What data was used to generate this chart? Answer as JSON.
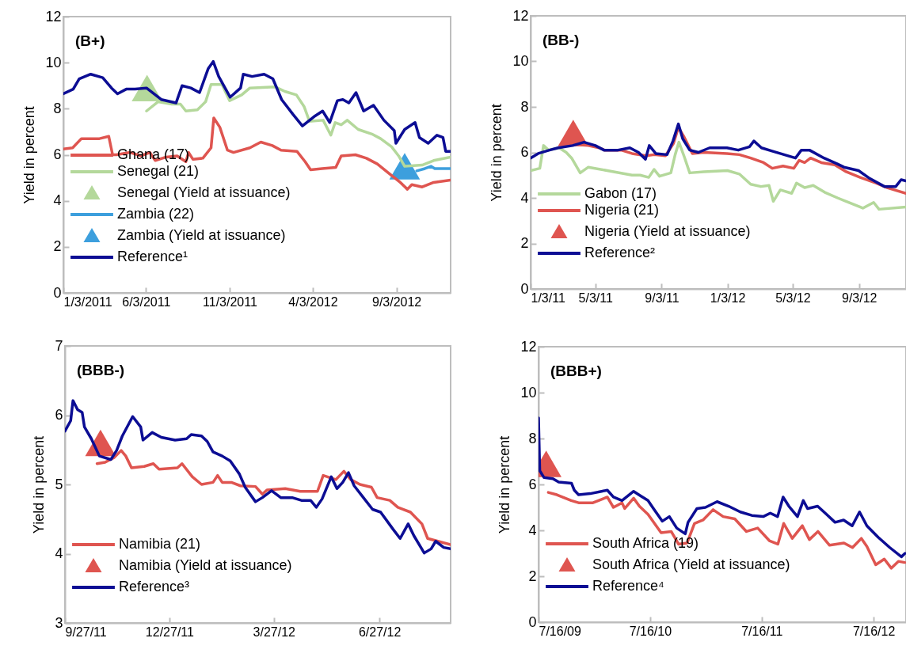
{
  "chart_data": [
    {
      "type": "line",
      "title": "(B+)",
      "ylabel": "Yield in percent",
      "xlim": [
        "2011-01-03",
        "2012-12-11"
      ],
      "ylim": [
        0,
        12
      ],
      "yticks": [
        0,
        2,
        4,
        6,
        8,
        10,
        12
      ],
      "grid": false,
      "legend": "bottom left",
      "xticks": [
        {
          "value": "2011-01-03",
          "label": "1/3/2011"
        },
        {
          "value": "2011-06-03",
          "label": "6/3/2011"
        },
        {
          "value": "2011-11-03",
          "label": "11/3/2011"
        },
        {
          "value": "2012-04-03",
          "label": "4/3/2012"
        },
        {
          "value": "2012-09-03",
          "label": "9/3/2012"
        }
      ],
      "series": [
        {
          "name": "Ghana (17)",
          "type": "line",
          "color": "#df5550",
          "x": [
            "2011-01-03",
            "2011-01-20",
            "2011-02-05",
            "2011-03-10",
            "2011-03-27",
            "2011-04-03",
            "2011-04-10",
            "2011-05-05",
            "2011-05-25",
            "2011-06-10",
            "2011-06-20",
            "2011-07-10",
            "2011-07-30",
            "2011-08-15",
            "2011-08-20",
            "2011-08-28",
            "2011-09-15",
            "2011-09-30",
            "2011-10-05",
            "2011-10-16",
            "2011-10-30",
            "2011-11-10",
            "2011-12-10",
            "2011-12-30",
            "2012-01-20",
            "2012-02-05",
            "2012-03-05",
            "2012-03-20",
            "2012-03-30",
            "2012-04-20",
            "2012-05-15",
            "2012-05-25",
            "2012-06-20",
            "2012-07-10",
            "2012-07-30",
            "2012-08-20",
            "2012-09-10",
            "2012-09-23",
            "2012-10-01",
            "2012-10-20",
            "2012-11-10",
            "2012-12-11"
          ],
          "values": [
            6.25,
            6.3,
            6.7,
            6.7,
            6.8,
            6.0,
            6.0,
            6.1,
            5.95,
            6.1,
            5.75,
            5.9,
            5.95,
            5.7,
            6.1,
            5.8,
            5.85,
            6.3,
            7.6,
            7.2,
            6.2,
            6.1,
            6.3,
            6.55,
            6.4,
            6.2,
            6.15,
            5.7,
            5.35,
            5.4,
            5.45,
            5.95,
            6.0,
            5.85,
            5.6,
            5.2,
            4.8,
            4.5,
            4.7,
            4.6,
            4.8,
            4.9
          ]
        },
        {
          "name": "Senegal (21)",
          "type": "line",
          "color": "#b4d89b",
          "x": [
            "2011-06-04",
            "2011-06-25",
            "2011-07-20",
            "2011-08-05",
            "2011-08-15",
            "2011-09-05",
            "2011-09-20",
            "2011-09-30",
            "2011-10-20",
            "2011-11-03",
            "2011-11-25",
            "2011-12-10",
            "2012-01-25",
            "2012-02-12",
            "2012-03-04",
            "2012-03-18",
            "2012-03-28",
            "2012-04-22",
            "2012-05-06",
            "2012-05-14",
            "2012-05-25",
            "2012-06-05",
            "2012-06-25",
            "2012-07-20",
            "2012-08-05",
            "2012-08-25",
            "2012-09-07",
            "2012-09-18",
            "2012-10-20",
            "2012-11-10",
            "2012-12-11"
          ],
          "values": [
            7.9,
            8.3,
            8.2,
            8.2,
            7.9,
            7.95,
            8.3,
            9.05,
            9.05,
            8.35,
            8.6,
            8.9,
            8.95,
            8.75,
            8.6,
            8.1,
            7.45,
            7.5,
            6.85,
            7.4,
            7.3,
            7.5,
            7.1,
            6.9,
            6.7,
            6.35,
            5.95,
            5.5,
            5.55,
            5.75,
            5.9
          ]
        },
        {
          "name": "Senegal (Yield at issuance)",
          "type": "scatter",
          "marker": "triangle",
          "color": "#b4d89b",
          "x": [
            "2011-06-05"
          ],
          "values": [
            8.9
          ]
        },
        {
          "name": "Zambia (22)",
          "type": "line",
          "color": "#3d9fdd",
          "x": [
            "2012-10-10",
            "2012-10-25",
            "2012-11-05",
            "2012-11-12",
            "2012-12-11"
          ],
          "values": [
            5.3,
            5.4,
            5.5,
            5.4,
            5.4
          ]
        },
        {
          "name": "Zambia (Yield at issuance)",
          "type": "scatter",
          "marker": "triangle",
          "color": "#3d9fdd",
          "x": [
            "2012-09-18"
          ],
          "values": [
            5.5
          ]
        },
        {
          "name": "Reference¹",
          "type": "line",
          "color": "#0c0d94",
          "x": [
            "2011-01-03",
            "2011-01-21",
            "2011-02-01",
            "2011-02-22",
            "2011-03-16",
            "2011-04-01",
            "2011-04-12",
            "2011-04-28",
            "2011-05-14",
            "2011-06-04",
            "2011-07-01",
            "2011-07-28",
            "2011-08-08",
            "2011-08-24",
            "2011-09-09",
            "2011-09-25",
            "2011-10-04",
            "2011-10-14",
            "2011-11-04",
            "2011-11-23",
            "2011-11-28",
            "2011-12-14",
            "2012-01-05",
            "2012-01-21",
            "2012-02-06",
            "2012-02-27",
            "2012-03-15",
            "2012-04-05",
            "2012-04-21",
            "2012-05-04",
            "2012-05-18",
            "2012-05-28",
            "2012-06-08",
            "2012-06-21",
            "2012-07-05",
            "2012-07-23",
            "2012-08-11",
            "2012-08-30",
            "2012-09-02",
            "2012-09-18",
            "2012-10-07",
            "2012-10-15",
            "2012-10-31",
            "2012-11-16",
            "2012-11-27",
            "2012-12-02",
            "2012-12-11"
          ],
          "values": [
            8.65,
            8.85,
            9.3,
            9.5,
            9.35,
            8.9,
            8.65,
            8.85,
            8.85,
            8.9,
            8.4,
            8.25,
            9.0,
            8.9,
            8.7,
            9.75,
            10.05,
            9.4,
            8.5,
            8.9,
            9.5,
            9.4,
            9.5,
            9.3,
            8.4,
            7.75,
            7.25,
            7.65,
            7.9,
            7.4,
            8.35,
            8.4,
            8.25,
            8.7,
            7.9,
            8.15,
            7.5,
            7.05,
            6.5,
            7.1,
            7.4,
            6.75,
            6.5,
            6.85,
            6.75,
            6.15,
            6.15
          ]
        }
      ]
    },
    {
      "type": "line",
      "title": "(BB-)",
      "ylabel": "Yield in percent",
      "xlim": [
        "2011-01-03",
        "2012-11-29"
      ],
      "ylim": [
        0,
        12
      ],
      "yticks": [
        0,
        2,
        4,
        6,
        8,
        10,
        12
      ],
      "grid": false,
      "legend": "bottom left",
      "xticks": [
        {
          "value": "2011-01-03",
          "label": "1/3/11"
        },
        {
          "value": "2011-05-03",
          "label": "5/3/11"
        },
        {
          "value": "2011-09-03",
          "label": "9/3/11"
        },
        {
          "value": "2012-01-03",
          "label": "1/3/12"
        },
        {
          "value": "2012-05-03",
          "label": "5/3/12"
        },
        {
          "value": "2012-09-03",
          "label": "9/3/12"
        }
      ],
      "series": [
        {
          "name": "Gabon (17)",
          "type": "line",
          "color": "#b4d89b",
          "x": [
            "2011-01-03",
            "2011-01-20",
            "2011-01-27",
            "2011-02-05",
            "2011-02-25",
            "2011-03-10",
            "2011-03-20",
            "2011-04-05",
            "2011-04-20",
            "2011-05-25",
            "2011-07-10",
            "2011-07-25",
            "2011-08-10",
            "2011-08-20",
            "2011-08-30",
            "2011-09-20",
            "2011-09-28",
            "2011-10-05",
            "2011-10-15",
            "2011-10-25",
            "2011-11-20",
            "2012-01-03",
            "2012-01-25",
            "2012-02-15",
            "2012-03-05",
            "2012-03-20",
            "2012-03-28",
            "2012-04-10",
            "2012-05-01",
            "2012-05-10",
            "2012-05-25",
            "2012-06-10",
            "2012-07-01",
            "2012-07-25",
            "2012-08-20",
            "2012-09-10",
            "2012-09-30",
            "2012-10-10",
            "2012-11-29"
          ],
          "values": [
            5.2,
            5.3,
            6.3,
            6.1,
            6.2,
            6.0,
            5.75,
            5.1,
            5.35,
            5.2,
            5.0,
            5.0,
            4.9,
            5.25,
            4.95,
            5.1,
            5.9,
            6.45,
            5.8,
            5.1,
            5.15,
            5.2,
            5.05,
            4.6,
            4.5,
            4.55,
            3.85,
            4.35,
            4.2,
            4.65,
            4.45,
            4.55,
            4.25,
            4.0,
            3.75,
            3.55,
            3.8,
            3.5,
            3.6
          ]
        },
        {
          "name": "Nigeria (21)",
          "type": "line",
          "color": "#df5550",
          "x": [
            "2011-03-25",
            "2011-04-20",
            "2011-05-10",
            "2011-05-20",
            "2011-06-20",
            "2011-07-10",
            "2011-08-05",
            "2011-08-20",
            "2011-09-10",
            "2011-09-25",
            "2011-10-04",
            "2011-10-14",
            "2011-10-30",
            "2011-11-20",
            "2012-01-02",
            "2012-01-25",
            "2012-02-15",
            "2012-03-10",
            "2012-03-26",
            "2012-04-15",
            "2012-05-05",
            "2012-05-15",
            "2012-05-25",
            "2012-06-05",
            "2012-06-25",
            "2012-07-20",
            "2012-08-10",
            "2012-09-05",
            "2012-10-05",
            "2012-10-25",
            "2012-11-29"
          ],
          "values": [
            6.35,
            6.3,
            6.2,
            6.1,
            6.1,
            5.95,
            5.85,
            5.9,
            5.85,
            6.4,
            7.1,
            6.7,
            5.95,
            6.0,
            5.95,
            5.9,
            5.75,
            5.55,
            5.3,
            5.4,
            5.3,
            5.65,
            5.55,
            5.75,
            5.55,
            5.45,
            5.15,
            4.9,
            4.65,
            4.45,
            4.2
          ]
        },
        {
          "name": "Nigeria (Yield at issuance)",
          "type": "scatter",
          "marker": "triangle",
          "color": "#df5550",
          "x": [
            "2011-03-23"
          ],
          "values": [
            6.85
          ]
        },
        {
          "name": "Reference²",
          "type": "line",
          "color": "#0c0d94",
          "x": [
            "2011-01-03",
            "2011-01-17",
            "2011-02-07",
            "2011-02-23",
            "2011-03-22",
            "2011-04-12",
            "2011-05-03",
            "2011-05-19",
            "2011-06-14",
            "2011-07-06",
            "2011-07-22",
            "2011-08-04",
            "2011-08-11",
            "2011-08-23",
            "2011-09-13",
            "2011-09-24",
            "2011-10-04",
            "2011-10-12",
            "2011-10-25",
            "2011-11-10",
            "2011-12-01",
            "2012-01-02",
            "2012-01-23",
            "2012-02-13",
            "2012-02-21",
            "2012-03-06",
            "2012-03-27",
            "2012-04-17",
            "2012-05-08",
            "2012-05-19",
            "2012-06-03",
            "2012-06-30",
            "2012-07-24",
            "2012-08-06",
            "2012-09-02",
            "2012-09-23",
            "2012-10-20",
            "2012-11-10",
            "2012-11-20",
            "2012-11-29"
          ],
          "values": [
            5.75,
            5.95,
            6.1,
            6.2,
            6.3,
            6.45,
            6.3,
            6.1,
            6.1,
            6.2,
            6.0,
            5.7,
            6.3,
            5.95,
            5.9,
            6.5,
            7.25,
            6.6,
            6.1,
            6.0,
            6.2,
            6.2,
            6.1,
            6.25,
            6.5,
            6.2,
            6.05,
            5.9,
            5.75,
            6.1,
            6.1,
            5.75,
            5.5,
            5.35,
            5.2,
            4.85,
            4.5,
            4.5,
            4.8,
            4.75
          ]
        }
      ]
    },
    {
      "type": "line",
      "title": "(BBB-)",
      "ylabel": "Yield in percent",
      "xlim": [
        "2011-09-27",
        "2012-08-28"
      ],
      "ylim": [
        3,
        7
      ],
      "yticks": [
        3,
        4,
        5,
        6,
        7
      ],
      "grid": false,
      "legend": "bottom left",
      "xticks": [
        {
          "value": "2011-09-27",
          "label": "9/27/11"
        },
        {
          "value": "2011-12-27",
          "label": "12/27/11"
        },
        {
          "value": "2012-03-27",
          "label": "3/27/12"
        },
        {
          "value": "2012-06-27",
          "label": "6/27/12"
        }
      ],
      "series": [
        {
          "name": "Namibia (21)",
          "type": "line",
          "color": "#df5550",
          "x": [
            "2011-10-25",
            "2011-11-01",
            "2011-11-09",
            "2011-11-15",
            "2011-11-19",
            "2011-11-24",
            "2011-12-05",
            "2011-12-13",
            "2011-12-18",
            "2012-01-03",
            "2012-01-07",
            "2012-01-16",
            "2012-01-24",
            "2012-02-03",
            "2012-02-07",
            "2012-02-11",
            "2012-02-19",
            "2012-02-27",
            "2012-03-11",
            "2012-03-17",
            "2012-03-21",
            "2012-04-06",
            "2012-04-19",
            "2012-05-04",
            "2012-05-09",
            "2012-05-20",
            "2012-05-27",
            "2012-06-02",
            "2012-06-10",
            "2012-06-20",
            "2012-06-25",
            "2012-07-06",
            "2012-07-13",
            "2012-07-24",
            "2012-08-03",
            "2012-08-08",
            "2012-08-28"
          ],
          "values": [
            5.3,
            5.32,
            5.39,
            5.49,
            5.41,
            5.24,
            5.26,
            5.3,
            5.22,
            5.24,
            5.3,
            5.11,
            5.0,
            5.03,
            5.13,
            5.03,
            5.03,
            4.98,
            4.97,
            4.86,
            4.92,
            4.94,
            4.9,
            4.9,
            5.13,
            5.07,
            5.19,
            5.07,
            5.0,
            4.96,
            4.81,
            4.77,
            4.67,
            4.6,
            4.43,
            4.22,
            4.13
          ]
        },
        {
          "name": "Namibia (Yield at issuance)",
          "type": "scatter",
          "marker": "triangle",
          "color": "#df5550",
          "x": [
            "2011-10-28"
          ],
          "values": [
            5.6
          ]
        },
        {
          "name": "Reference³",
          "type": "line",
          "color": "#0c0d94",
          "x": [
            "2011-09-27",
            "2011-10-02",
            "2011-10-04",
            "2011-10-08",
            "2011-10-12",
            "2011-10-14",
            "2011-10-20",
            "2011-10-27",
            "2011-11-06",
            "2011-11-11",
            "2011-11-16",
            "2011-11-25",
            "2011-12-02",
            "2011-12-04",
            "2011-12-12",
            "2011-12-20",
            "2012-01-01",
            "2012-01-11",
            "2012-01-15",
            "2012-01-24",
            "2012-01-29",
            "2012-02-03",
            "2012-02-11",
            "2012-02-18",
            "2012-02-26",
            "2012-03-02",
            "2012-03-11",
            "2012-03-17",
            "2012-03-25",
            "2012-04-02",
            "2012-04-12",
            "2012-04-20",
            "2012-04-28",
            "2012-05-03",
            "2012-05-08",
            "2012-05-16",
            "2012-05-21",
            "2012-05-26",
            "2012-05-31",
            "2012-06-05",
            "2012-06-13",
            "2012-06-21",
            "2012-06-28",
            "2012-07-09",
            "2012-07-15",
            "2012-07-22",
            "2012-07-27",
            "2012-08-05",
            "2012-08-11",
            "2012-08-15",
            "2012-08-22",
            "2012-08-28"
          ],
          "values": [
            5.77,
            5.92,
            6.21,
            6.08,
            6.04,
            5.83,
            5.66,
            5.41,
            5.36,
            5.49,
            5.7,
            5.98,
            5.83,
            5.64,
            5.75,
            5.68,
            5.64,
            5.66,
            5.72,
            5.7,
            5.62,
            5.47,
            5.41,
            5.34,
            5.15,
            4.96,
            4.75,
            4.81,
            4.91,
            4.81,
            4.81,
            4.77,
            4.77,
            4.67,
            4.79,
            5.11,
            4.94,
            5.03,
            5.17,
            4.98,
            4.81,
            4.64,
            4.6,
            4.35,
            4.22,
            4.43,
            4.26,
            4.01,
            4.07,
            4.18,
            4.09,
            4.07
          ]
        }
      ]
    },
    {
      "type": "line",
      "title": "(BBB+)",
      "ylabel": "Yield in percent",
      "xlim": [
        "2009-07-16",
        "2012-10-30"
      ],
      "ylim": [
        0,
        12
      ],
      "yticks": [
        0,
        2,
        4,
        6,
        8,
        10,
        12
      ],
      "grid": false,
      "legend": "bottom left",
      "xticks": [
        {
          "value": "2009-07-16",
          "label": "7/16/09"
        },
        {
          "value": "2010-07-16",
          "label": "7/16/10"
        },
        {
          "value": "2011-07-16",
          "label": "7/16/11"
        },
        {
          "value": "2012-07-16",
          "label": "7/16/12"
        }
      ],
      "series": [
        {
          "name": "South Africa (19)",
          "type": "line",
          "color": "#df5550",
          "x": [
            "2009-08-17",
            "2009-09-14",
            "2009-10-31",
            "2009-11-24",
            "2010-01-10",
            "2010-02-26",
            "2010-03-18",
            "2010-04-15",
            "2010-04-24",
            "2010-05-23",
            "2010-06-11",
            "2010-07-09",
            "2010-08-21",
            "2010-09-23",
            "2010-10-17",
            "2010-11-14",
            "2010-12-08",
            "2011-01-05",
            "2011-02-07",
            "2011-03-12",
            "2011-04-19",
            "2011-05-27",
            "2011-07-03",
            "2011-08-10",
            "2011-09-07",
            "2011-09-26",
            "2011-10-24",
            "2011-11-26",
            "2011-12-19",
            "2012-01-16",
            "2012-02-23",
            "2012-04-10",
            "2012-05-08",
            "2012-06-06",
            "2012-06-24",
            "2012-07-23",
            "2012-08-20",
            "2012-09-12",
            "2012-10-05",
            "2012-10-26"
          ],
          "values": [
            5.65,
            5.55,
            5.3,
            5.2,
            5.2,
            5.45,
            5.0,
            5.2,
            4.95,
            5.4,
            5.05,
            4.7,
            3.9,
            3.95,
            3.4,
            3.45,
            4.3,
            4.45,
            4.9,
            4.6,
            4.5,
            3.95,
            4.1,
            3.55,
            3.4,
            4.3,
            3.65,
            4.2,
            3.6,
            3.95,
            3.35,
            3.45,
            3.25,
            3.65,
            3.3,
            2.5,
            2.75,
            2.35,
            2.65,
            2.6
          ]
        },
        {
          "name": "South Africa (Yield at issuance)",
          "type": "scatter",
          "marker": "triangle",
          "color": "#df5550",
          "x": [
            "2009-08-10"
          ],
          "values": [
            6.9
          ]
        },
        {
          "name": "Reference⁴",
          "type": "line",
          "color": "#0c0d94",
          "x": [
            "2009-07-16",
            "2009-07-20",
            "2009-08-03",
            "2009-09-01",
            "2009-09-20",
            "2009-11-01",
            "2009-11-10",
            "2009-11-24",
            "2010-01-01",
            "2010-02-07",
            "2010-02-26",
            "2010-03-18",
            "2010-04-15",
            "2010-05-23",
            "2010-06-15",
            "2010-07-09",
            "2010-07-27",
            "2010-08-25",
            "2010-09-17",
            "2010-10-11",
            "2010-11-08",
            "2010-11-17",
            "2010-12-16",
            "2011-01-13",
            "2011-02-20",
            "2011-03-30",
            "2011-05-07",
            "2011-06-14",
            "2011-07-21",
            "2011-08-13",
            "2011-09-06",
            "2011-09-24",
            "2011-10-13",
            "2011-11-10",
            "2011-11-29",
            "2011-12-13",
            "2012-01-15",
            "2012-02-13",
            "2012-03-12",
            "2012-04-09",
            "2012-05-07",
            "2012-05-31",
            "2012-06-24",
            "2012-07-31",
            "2012-09-07",
            "2012-10-15",
            "2012-10-27"
          ],
          "values": [
            8.9,
            6.6,
            6.3,
            6.25,
            6.1,
            6.05,
            5.75,
            5.55,
            5.6,
            5.7,
            5.75,
            5.45,
            5.3,
            5.7,
            5.5,
            5.3,
            4.95,
            4.4,
            4.6,
            4.1,
            3.85,
            4.35,
            4.95,
            5.0,
            5.25,
            5.05,
            4.8,
            4.65,
            4.6,
            4.75,
            4.6,
            5.45,
            5.05,
            4.6,
            5.3,
            4.95,
            5.05,
            4.7,
            4.35,
            4.45,
            4.2,
            4.8,
            4.2,
            3.7,
            3.25,
            2.85,
            3.0
          ]
        }
      ]
    }
  ]
}
